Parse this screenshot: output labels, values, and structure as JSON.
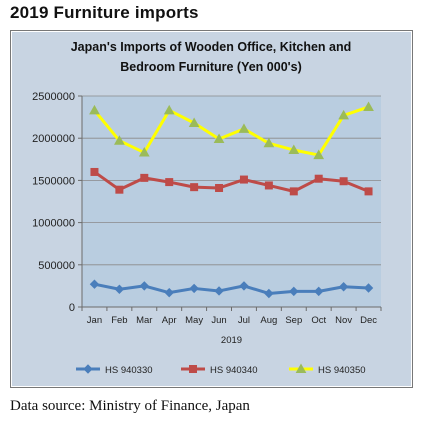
{
  "page": {
    "heading": "2019 Furniture imports",
    "source": "Data source: Ministry of Finance, Japan"
  },
  "chart_data": {
    "type": "line",
    "title_lines": [
      "Japan's Imports of  Wooden  Office, Kitchen and",
      "Bedroom Furniture (Yen 000's)"
    ],
    "xlabel": "2019",
    "ylabel": "",
    "categories": [
      "Jan",
      "Feb",
      "Mar",
      "Apr",
      "May",
      "Jun",
      "Jul",
      "Aug",
      "Sep",
      "Oct",
      "Nov",
      "Dec"
    ],
    "ylim": [
      0,
      2500000
    ],
    "yticks": [
      0,
      500000,
      1000000,
      1500000,
      2000000,
      2500000
    ],
    "ytick_labels": [
      "0",
      "500000",
      "1000000",
      "1500000",
      "2000000",
      "2500000"
    ],
    "grid": true,
    "legend_position": "bottom",
    "plot_background": "#b9cde0",
    "series": [
      {
        "name": "HS 940330",
        "color": "#4a7ebb",
        "marker": "diamond",
        "values": [
          270000,
          210000,
          250000,
          170000,
          220000,
          190000,
          250000,
          160000,
          185000,
          185000,
          240000,
          225000
        ]
      },
      {
        "name": "HS 940340",
        "color": "#be4b48",
        "marker": "square",
        "values": [
          1600000,
          1390000,
          1530000,
          1480000,
          1420000,
          1410000,
          1510000,
          1440000,
          1370000,
          1520000,
          1490000,
          1370000
        ]
      },
      {
        "name": "HS 940350",
        "color": "#ffff00",
        "marker_color": "#9bbb59",
        "marker": "triangle",
        "values": [
          2330000,
          1970000,
          1830000,
          2330000,
          2180000,
          1990000,
          2110000,
          1940000,
          1860000,
          1800000,
          2270000,
          2370000
        ]
      }
    ]
  }
}
